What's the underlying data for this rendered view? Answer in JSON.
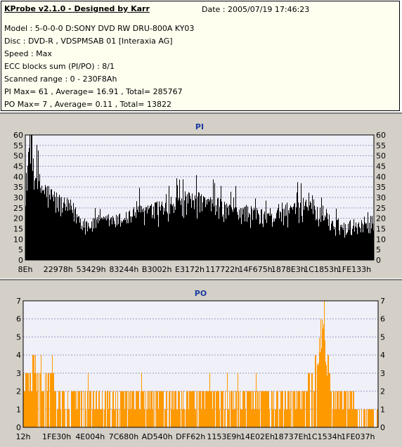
{
  "info": {
    "title": "KProbe v2.1.0 - Designed by Karr",
    "date": "Date : 2005/07/19 17:46:23",
    "lines": [
      "Model : 5-0-0-0 D:SONY    DVD RW DRU-800A  KY03",
      "Disc : DVD-R , VDSPMSAB 01 [Interaxia AG]",
      "Speed : Max",
      "ECC blocks sum (PI/PO) : 8/1",
      "Scanned range : 0 - 230F8Ah",
      "PI Max= 61 , Average= 16.91 , Total= 285767",
      "PO Max= 7 , Average= 0.11 , Total= 13822"
    ]
  },
  "chart_data": [
    {
      "type": "bar",
      "title": "PI",
      "color": "#000000",
      "ylim": [
        0,
        60
      ],
      "yticks": [
        0,
        5,
        10,
        15,
        20,
        25,
        30,
        35,
        40,
        45,
        50,
        55,
        60
      ],
      "xticks": [
        "8Eh",
        "22978h",
        "53429h",
        "83244h",
        "B3002h",
        "E3172h",
        "117722h",
        "14F675h",
        "1878E3h",
        "1C1853h",
        "1FE133h"
      ],
      "envelope": [
        [
          0,
          44
        ],
        [
          1,
          58
        ],
        [
          2,
          56
        ],
        [
          3,
          45
        ],
        [
          4,
          42
        ],
        [
          5,
          40
        ],
        [
          6,
          38
        ],
        [
          7,
          36
        ],
        [
          8,
          35
        ],
        [
          9,
          33
        ],
        [
          10,
          32
        ],
        [
          11,
          30
        ],
        [
          12,
          30
        ],
        [
          13,
          29
        ],
        [
          14,
          27
        ],
        [
          15,
          24
        ],
        [
          16,
          22
        ],
        [
          17,
          21
        ],
        [
          18,
          20
        ],
        [
          19,
          20
        ],
        [
          20,
          21
        ],
        [
          21,
          22
        ],
        [
          22,
          21
        ],
        [
          23,
          22
        ],
        [
          24,
          23
        ],
        [
          25,
          22
        ],
        [
          26,
          22
        ],
        [
          27,
          23
        ],
        [
          28,
          24
        ],
        [
          29,
          25
        ],
        [
          30,
          25
        ],
        [
          31,
          26
        ],
        [
          32,
          27
        ],
        [
          33,
          27
        ],
        [
          34,
          28
        ],
        [
          35,
          28
        ],
        [
          36,
          27
        ],
        [
          37,
          28
        ],
        [
          38,
          29
        ],
        [
          39,
          29
        ],
        [
          40,
          30
        ],
        [
          41,
          30
        ],
        [
          42,
          31
        ],
        [
          43,
          32
        ],
        [
          44,
          32
        ],
        [
          45,
          33
        ],
        [
          46,
          33
        ],
        [
          47,
          32
        ],
        [
          48,
          32
        ],
        [
          49,
          33
        ],
        [
          50,
          33
        ],
        [
          51,
          32
        ],
        [
          52,
          31
        ],
        [
          53,
          31
        ],
        [
          54,
          30
        ],
        [
          55,
          30
        ],
        [
          56,
          29
        ],
        [
          57,
          29
        ],
        [
          58,
          28
        ],
        [
          59,
          28
        ],
        [
          60,
          28
        ],
        [
          61,
          27
        ],
        [
          62,
          27
        ],
        [
          63,
          27
        ],
        [
          64,
          26
        ],
        [
          65,
          26
        ],
        [
          66,
          26
        ],
        [
          67,
          25
        ],
        [
          68,
          25
        ],
        [
          69,
          25
        ],
        [
          70,
          25
        ],
        [
          71,
          26
        ],
        [
          72,
          27
        ],
        [
          73,
          28
        ],
        [
          74,
          28
        ],
        [
          75,
          27
        ],
        [
          76,
          27
        ],
        [
          77,
          28
        ],
        [
          78,
          30
        ],
        [
          79,
          32
        ],
        [
          80,
          34
        ],
        [
          81,
          33
        ],
        [
          82,
          30
        ],
        [
          83,
          27
        ],
        [
          84,
          25
        ],
        [
          85,
          23
        ],
        [
          86,
          23
        ],
        [
          87,
          21
        ],
        [
          88,
          20
        ],
        [
          89,
          20
        ],
        [
          90,
          19
        ],
        [
          91,
          18
        ],
        [
          92,
          19
        ],
        [
          93,
          20
        ],
        [
          94,
          20
        ],
        [
          95,
          20
        ],
        [
          96,
          21
        ],
        [
          97,
          21
        ],
        [
          98,
          22
        ],
        [
          99,
          24
        ]
      ]
    },
    {
      "type": "bar",
      "title": "PO",
      "color": "#ff9900",
      "ylim": [
        0,
        7
      ],
      "yticks": [
        0,
        1,
        2,
        3,
        4,
        5,
        6,
        7
      ],
      "xticks": [
        "12h",
        "1FE30h",
        "4E004h",
        "7C680h",
        "AD540h",
        "DFF62h",
        "1153E9h",
        "14E02Eh",
        "18737Eh",
        "1C1534h",
        "1FE037h"
      ],
      "envelope": [
        [
          0,
          3
        ],
        [
          1,
          3
        ],
        [
          2,
          3
        ],
        [
          3,
          4
        ],
        [
          4,
          3
        ],
        [
          5,
          3
        ],
        [
          6,
          3
        ],
        [
          7,
          3
        ],
        [
          8,
          3
        ],
        [
          9,
          2
        ],
        [
          10,
          2
        ],
        [
          11,
          2
        ],
        [
          12,
          2
        ],
        [
          13,
          2
        ],
        [
          14,
          2
        ],
        [
          15,
          2
        ],
        [
          16,
          2
        ],
        [
          17,
          2
        ],
        [
          18,
          2
        ],
        [
          19,
          2
        ],
        [
          20,
          2
        ],
        [
          21,
          2
        ],
        [
          22,
          2
        ],
        [
          23,
          2
        ],
        [
          24,
          2
        ],
        [
          25,
          2
        ],
        [
          26,
          2
        ],
        [
          27,
          2
        ],
        [
          28,
          2
        ],
        [
          29,
          2
        ],
        [
          30,
          2
        ],
        [
          31,
          2
        ],
        [
          32,
          2
        ],
        [
          33,
          2
        ],
        [
          34,
          2
        ],
        [
          35,
          2
        ],
        [
          36,
          2
        ],
        [
          37,
          2
        ],
        [
          38,
          2
        ],
        [
          39,
          2
        ],
        [
          40,
          2
        ],
        [
          41,
          2
        ],
        [
          42,
          2
        ],
        [
          43,
          2
        ],
        [
          44,
          2
        ],
        [
          45,
          2
        ],
        [
          46,
          2
        ],
        [
          47,
          2
        ],
        [
          48,
          2
        ],
        [
          49,
          2
        ],
        [
          50,
          2
        ],
        [
          51,
          2
        ],
        [
          52,
          2
        ],
        [
          53,
          2
        ],
        [
          54,
          2
        ],
        [
          55,
          2
        ],
        [
          56,
          2
        ],
        [
          57,
          2
        ],
        [
          58,
          2
        ],
        [
          59,
          2
        ],
        [
          60,
          2
        ],
        [
          61,
          2
        ],
        [
          62,
          2
        ],
        [
          63,
          2
        ],
        [
          64,
          2
        ],
        [
          65,
          2
        ],
        [
          66,
          2
        ],
        [
          67,
          2
        ],
        [
          68,
          2
        ],
        [
          69,
          2
        ],
        [
          70,
          2
        ],
        [
          71,
          2
        ],
        [
          72,
          2
        ],
        [
          73,
          2
        ],
        [
          74,
          2
        ],
        [
          75,
          2
        ],
        [
          76,
          2
        ],
        [
          77,
          2
        ],
        [
          78,
          2
        ],
        [
          79,
          2
        ],
        [
          80,
          3
        ],
        [
          81,
          3
        ],
        [
          82,
          4
        ],
        [
          83,
          6
        ],
        [
          84,
          7
        ],
        [
          85,
          4
        ],
        [
          86,
          2
        ],
        [
          87,
          2
        ],
        [
          88,
          2
        ],
        [
          89,
          2
        ],
        [
          90,
          2
        ],
        [
          91,
          2
        ],
        [
          92,
          2
        ],
        [
          93,
          1
        ],
        [
          94,
          1
        ],
        [
          95,
          1
        ],
        [
          96,
          1
        ],
        [
          97,
          1
        ],
        [
          98,
          1
        ],
        [
          99,
          1
        ]
      ],
      "spikes": [
        [
          3,
          4
        ],
        [
          5,
          4
        ],
        [
          8,
          4
        ],
        [
          18,
          3
        ],
        [
          33,
          3
        ],
        [
          52,
          3
        ],
        [
          57,
          3
        ],
        [
          60,
          3
        ],
        [
          65,
          3
        ],
        [
          84,
          7
        ],
        [
          83,
          6
        ]
      ]
    }
  ]
}
